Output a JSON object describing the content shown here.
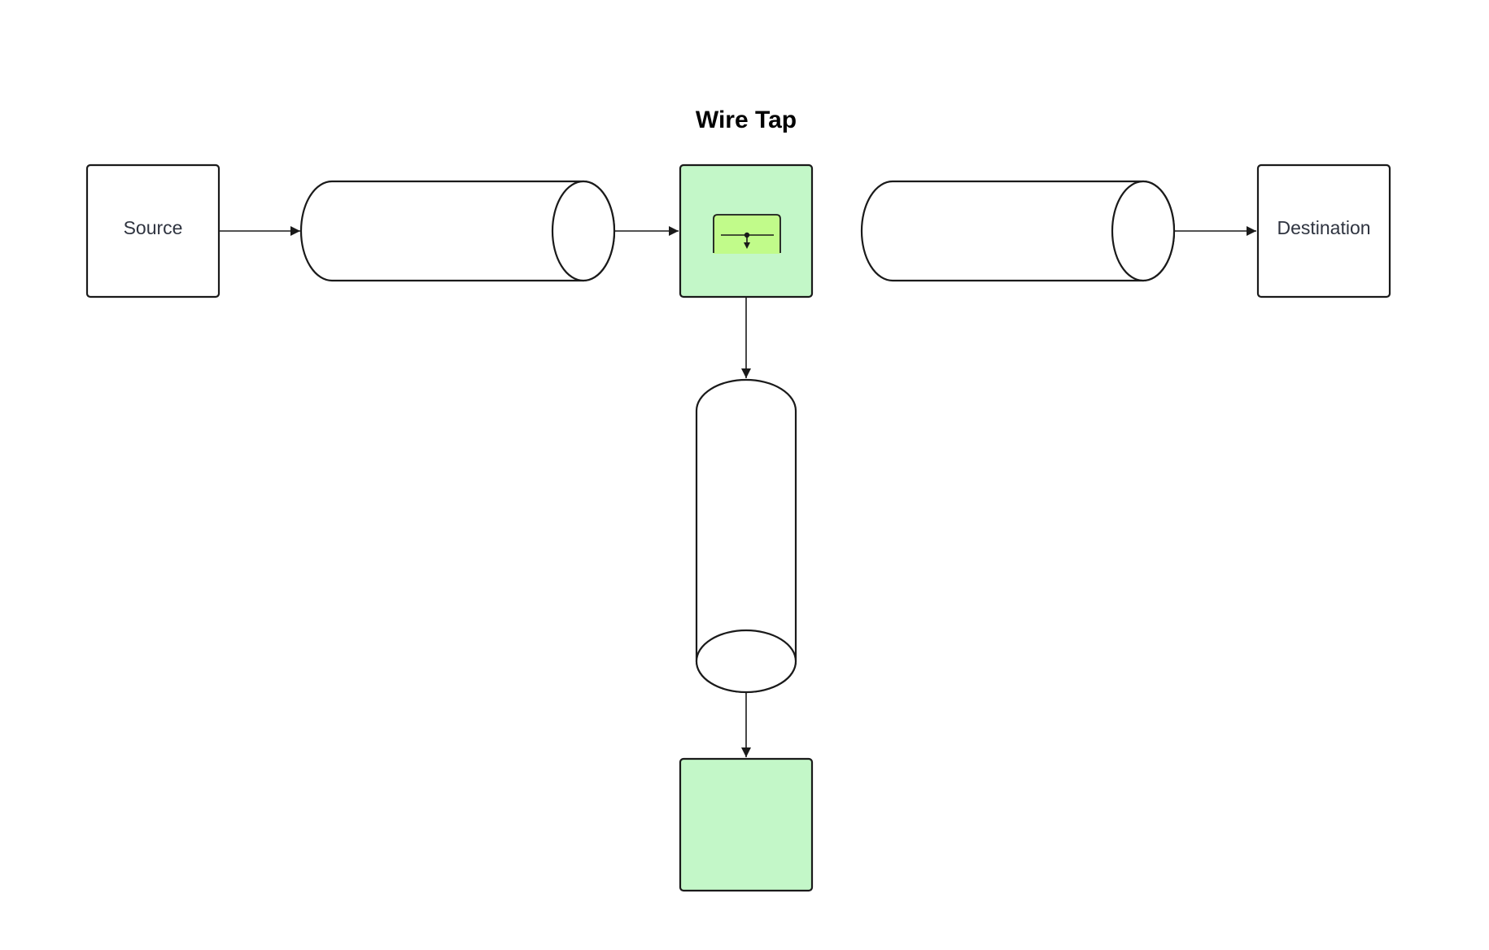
{
  "diagram": {
    "title": "Wire Tap",
    "nodes": {
      "source": {
        "label": "Source"
      },
      "destination": {
        "label": "Destination"
      }
    },
    "colors": {
      "tap_fill": "#c3f7c8",
      "tap_icon_fill": "#c1fb8a",
      "monitor_fill": "#c3f7c8",
      "default_fill": "#ffffff",
      "stroke": "#1a1a1a"
    }
  }
}
